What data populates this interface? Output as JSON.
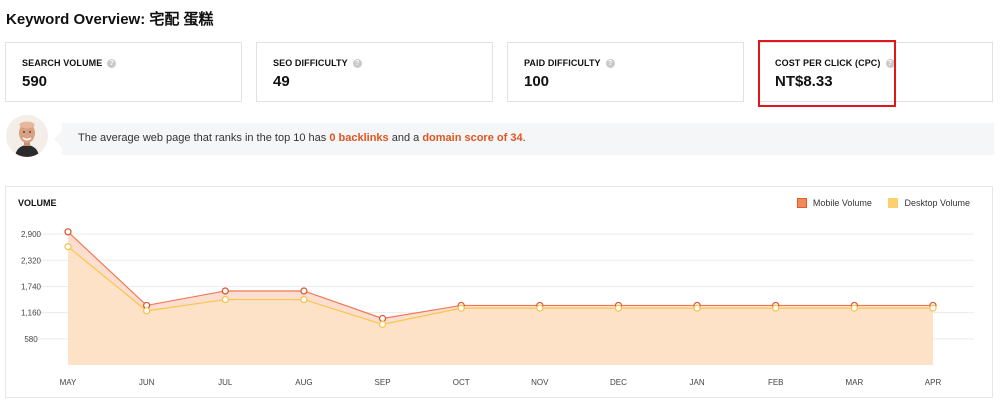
{
  "header": {
    "title": "Keyword Overview: 宅配 蛋糕"
  },
  "metrics": [
    {
      "label": "SEARCH VOLUME",
      "value": "590"
    },
    {
      "label": "SEO DIFFICULTY",
      "value": "49"
    },
    {
      "label": "PAID DIFFICULTY",
      "value": "100"
    },
    {
      "label": "COST PER CLICK (CPC)",
      "value": "NT$8.33",
      "highlighted": true
    }
  ],
  "insight": {
    "prefix": "The average web page that ranks in the top 10 has ",
    "backlinks": "0 backlinks",
    "middle": " and a ",
    "domain_score": "domain score of 34",
    "suffix": "."
  },
  "chart_data": {
    "type": "area",
    "title": "VOLUME",
    "categories": [
      "MAY",
      "JUN",
      "JUL",
      "AUG",
      "SEP",
      "OCT",
      "NOV",
      "DEC",
      "JAN",
      "FEB",
      "MAR",
      "APR"
    ],
    "series": [
      {
        "name": "Mobile Volume",
        "color": "#e8582c",
        "values": [
          2950,
          1320,
          1640,
          1640,
          1030,
          1320,
          1320,
          1320,
          1320,
          1320,
          1320,
          1320
        ]
      },
      {
        "name": "Desktop Volume",
        "color": "#fcd06b",
        "values": [
          2620,
          1200,
          1450,
          1450,
          900,
          1260,
          1260,
          1260,
          1260,
          1260,
          1260,
          1260
        ]
      }
    ],
    "y_ticks": [
      "2,900",
      "2,320",
      "1,740",
      "1,160",
      "580"
    ],
    "y_tick_values": [
      2900,
      2320,
      1740,
      1160,
      580
    ],
    "ylim": [
      0,
      3190
    ],
    "legend_position": "top-right",
    "grid": true
  }
}
